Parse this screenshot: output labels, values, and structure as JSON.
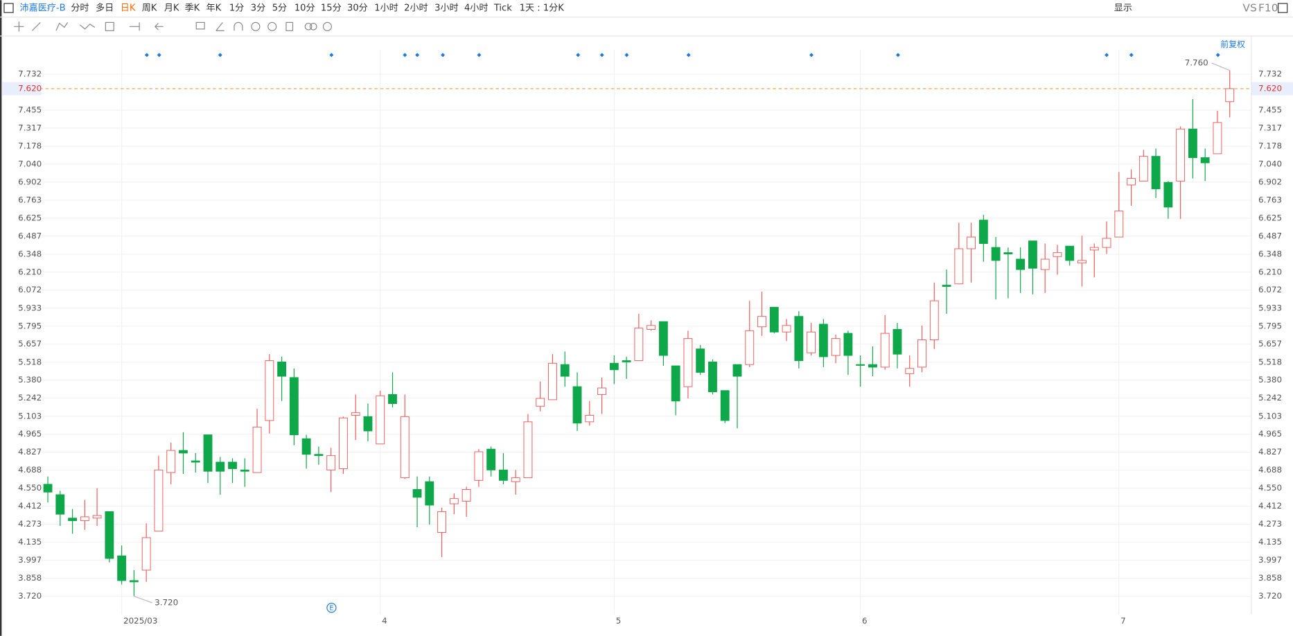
{
  "toolbar": {
    "symbol": "沛嘉医疗-B",
    "periods": [
      "分时",
      "多日",
      "日K",
      "周K",
      "月K",
      "季K",
      "年K",
      "1分",
      "3分",
      "5分",
      "10分",
      "15分",
      "30分",
      "1小时",
      "2小时",
      "3小时",
      "4小时",
      "Tick"
    ],
    "active_period": "日K",
    "period_setting": "1天 : 1分K",
    "display": "显示",
    "vs": "VS",
    "f10": "F10",
    "adjust": "前复权"
  },
  "chart_data": {
    "type": "candlestick",
    "categories": [
      null,
      null,
      null,
      null,
      null,
      null,
      "2025/03",
      null,
      null,
      null,
      null,
      null,
      null,
      null,
      null,
      null,
      null,
      null,
      null,
      null,
      null,
      null,
      null,
      null,
      null,
      null,
      null,
      "4",
      null,
      null,
      null,
      null,
      null,
      null,
      null,
      null,
      null,
      null,
      null,
      null,
      null,
      null,
      null,
      null,
      null,
      null,
      "5",
      null,
      null,
      null,
      null,
      null,
      null,
      null,
      null,
      null,
      null,
      null,
      null,
      null,
      null,
      null,
      null,
      null,
      null,
      null,
      "6",
      null,
      null,
      null,
      null,
      null,
      null,
      null,
      null,
      null,
      null,
      null,
      null,
      null,
      null,
      null,
      null,
      null,
      null,
      null,
      null,
      "7",
      null,
      null,
      null,
      null,
      null,
      null,
      null,
      null,
      null
    ],
    "open": [
      4.58,
      4.5,
      4.32,
      4.3,
      4.32,
      4.37,
      4.03,
      3.84,
      3.92,
      4.22,
      4.67,
      4.84,
      4.76,
      4.96,
      4.75,
      4.75,
      4.69,
      4.67,
      5.07,
      5.52,
      5.4,
      4.93,
      4.81,
      4.69,
      4.7,
      5.11,
      5.1,
      4.89,
      5.27,
      4.63,
      4.54,
      4.6,
      4.21,
      4.43,
      4.45,
      4.61,
      4.85,
      4.69,
      4.6,
      4.63,
      5.18,
      5.23,
      5.5,
      5.33,
      5.06,
      5.27,
      5.51,
      5.53,
      5.53,
      5.77,
      5.83,
      5.49,
      5.33,
      5.62,
      5.52,
      5.3,
      5.5,
      5.5,
      5.79,
      5.94,
      5.75,
      5.87,
      5.59,
      5.81,
      5.57,
      5.74,
      5.5,
      5.5,
      5.48,
      5.77,
      5.43,
      5.48,
      5.69,
      6.11,
      6.12,
      6.39,
      6.61,
      6.4,
      6.36,
      6.31,
      6.45,
      6.23,
      6.33,
      6.41,
      6.28,
      6.38,
      6.4,
      6.48,
      6.88,
      6.91,
      7.1,
      6.9,
      6.91,
      7.31,
      7.09,
      7.12,
      7.52
    ],
    "high": [
      4.64,
      4.53,
      4.39,
      4.46,
      4.55,
      4.37,
      4.11,
      3.92,
      4.28,
      4.8,
      4.9,
      4.98,
      4.82,
      4.96,
      4.79,
      4.78,
      4.78,
      5.16,
      5.58,
      5.56,
      5.47,
      4.96,
      4.87,
      4.86,
      5.1,
      5.27,
      5.2,
      5.3,
      5.44,
      5.27,
      4.64,
      4.64,
      4.4,
      4.51,
      4.56,
      4.85,
      4.87,
      4.82,
      4.69,
      5.12,
      5.37,
      5.58,
      5.6,
      5.44,
      5.22,
      5.4,
      5.57,
      5.56,
      5.89,
      5.84,
      5.83,
      5.49,
      5.76,
      5.65,
      5.54,
      5.3,
      5.5,
      5.99,
      6.06,
      5.94,
      5.85,
      5.91,
      5.82,
      5.85,
      5.73,
      5.76,
      5.57,
      5.64,
      5.88,
      5.82,
      5.57,
      5.8,
      6.13,
      6.23,
      6.59,
      6.59,
      6.65,
      6.48,
      6.4,
      6.4,
      6.45,
      6.43,
      6.42,
      6.41,
      6.49,
      6.43,
      6.6,
      6.98,
      7.0,
      7.15,
      7.16,
      6.91,
      7.33,
      7.54,
      7.16,
      7.45,
      7.76
    ],
    "low": [
      4.44,
      4.26,
      4.2,
      4.23,
      4.26,
      3.98,
      3.81,
      3.72,
      3.83,
      4.22,
      4.58,
      4.66,
      4.67,
      4.59,
      4.5,
      4.59,
      4.56,
      4.67,
      4.97,
      5.22,
      4.88,
      4.7,
      4.73,
      4.52,
      4.66,
      4.92,
      4.91,
      4.89,
      5.17,
      4.62,
      4.25,
      4.27,
      4.02,
      4.35,
      4.33,
      4.56,
      4.64,
      4.58,
      4.5,
      4.63,
      5.14,
      5.23,
      5.33,
      4.99,
      5.03,
      5.12,
      5.35,
      5.39,
      5.53,
      5.76,
      5.49,
      5.11,
      5.24,
      5.42,
      5.27,
      5.05,
      5.01,
      5.48,
      5.72,
      5.74,
      5.68,
      5.47,
      5.57,
      5.48,
      5.51,
      5.42,
      5.33,
      5.41,
      5.46,
      5.47,
      5.33,
      5.44,
      5.62,
      5.89,
      6.12,
      6.13,
      6.29,
      6.0,
      6.01,
      6.05,
      6.04,
      6.05,
      6.19,
      6.26,
      6.1,
      6.17,
      6.35,
      6.48,
      6.72,
      6.91,
      6.78,
      6.62,
      6.62,
      6.93,
      6.91,
      7.12,
      7.4
    ],
    "close": [
      4.52,
      4.35,
      4.3,
      4.33,
      4.34,
      4.01,
      3.84,
      3.83,
      4.17,
      4.69,
      4.84,
      4.82,
      4.75,
      4.68,
      4.68,
      4.7,
      4.68,
      5.02,
      5.53,
      5.41,
      4.96,
      4.81,
      4.8,
      4.8,
      5.09,
      5.13,
      4.99,
      5.26,
      5.2,
      5.1,
      4.48,
      4.42,
      4.37,
      4.47,
      4.54,
      4.83,
      4.69,
      4.61,
      4.63,
      5.06,
      5.24,
      5.51,
      5.41,
      5.05,
      5.11,
      5.32,
      5.46,
      5.52,
      5.78,
      5.8,
      5.57,
      5.22,
      5.7,
      5.44,
      5.29,
      5.07,
      5.41,
      5.76,
      5.87,
      5.75,
      5.8,
      5.53,
      5.75,
      5.56,
      5.7,
      5.57,
      5.5,
      5.48,
      5.74,
      5.58,
      5.47,
      5.69,
      5.99,
      6.1,
      6.39,
      6.48,
      6.43,
      6.3,
      6.35,
      6.23,
      6.24,
      6.31,
      6.36,
      6.3,
      6.3,
      6.4,
      6.47,
      6.68,
      6.93,
      7.1,
      6.85,
      6.71,
      7.31,
      7.09,
      7.05,
      7.36,
      7.62
    ],
    "up_color": "#f05a5a",
    "down_color": "#0ea84a",
    "ylim": [
      3.58,
      7.92
    ],
    "yticks": [
      {
        "value": 3.72,
        "label": "3.720"
      },
      3.858,
      3.997,
      4.135,
      4.273,
      4.412,
      {
        "value": 4.55,
        "label": "4.550"
      },
      4.688,
      4.827,
      4.965,
      5.103,
      5.242,
      {
        "value": 5.38,
        "label": "5.380"
      },
      5.518,
      5.657,
      5.795,
      5.933,
      6.072,
      {
        "value": 6.21,
        "label": "6.210"
      },
      6.348,
      6.487,
      6.625,
      6.763,
      6.902,
      {
        "value": 7.04,
        "label": "7.040"
      },
      7.178,
      7.317,
      7.455,
      7.732
    ],
    "grid": true,
    "current_price": {
      "value": 7.62,
      "label": "7.620"
    },
    "high_label": {
      "value": 7.76,
      "label": "7.760"
    },
    "low_label": {
      "value": 3.72,
      "label": "3.720"
    },
    "event_label": "E"
  }
}
